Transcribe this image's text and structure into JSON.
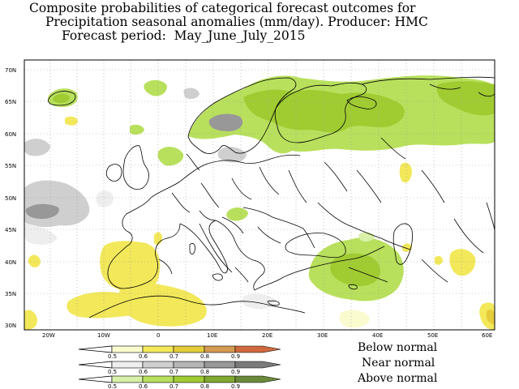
{
  "title": {
    "line1": "Composite probabilities of categorical forecast outcomes for",
    "line2": "Precipitation seasonal anomalies (mm/day). Producer: HMC",
    "line3": "Forecast period:  May_June_July_2015"
  },
  "map": {
    "lat_labels": [
      "70N",
      "65N",
      "60N",
      "55N",
      "50N",
      "45N",
      "40N",
      "35N",
      "30N"
    ],
    "lon_labels": [
      "20W",
      "10W",
      "0",
      "10E",
      "20E",
      "30E",
      "40E",
      "50E",
      "60E"
    ]
  },
  "legend": {
    "below": {
      "label": "Below normal",
      "ticks": [
        "0.5",
        "0.6",
        "0.7",
        "0.8",
        "0.9"
      ],
      "colors": [
        "#fbfbd0",
        "#f2e85a",
        "#e5cc3a",
        "#d79a52",
        "#cf6a3e"
      ]
    },
    "near": {
      "label": "Near normal",
      "ticks": [
        "0.5",
        "0.6",
        "0.7",
        "0.8",
        "0.9"
      ],
      "colors": [
        "#eeeeee",
        "#cfcfcf",
        "#b5b5b5",
        "#989898",
        "#7a7a7a"
      ]
    },
    "above": {
      "label": "Above normal",
      "ticks": [
        "0.5",
        "0.6",
        "0.7",
        "0.8",
        "0.9"
      ],
      "colors": [
        "#d8f0a8",
        "#b8e05c",
        "#a0cc32",
        "#7fa830",
        "#6b8a3a"
      ]
    }
  }
}
